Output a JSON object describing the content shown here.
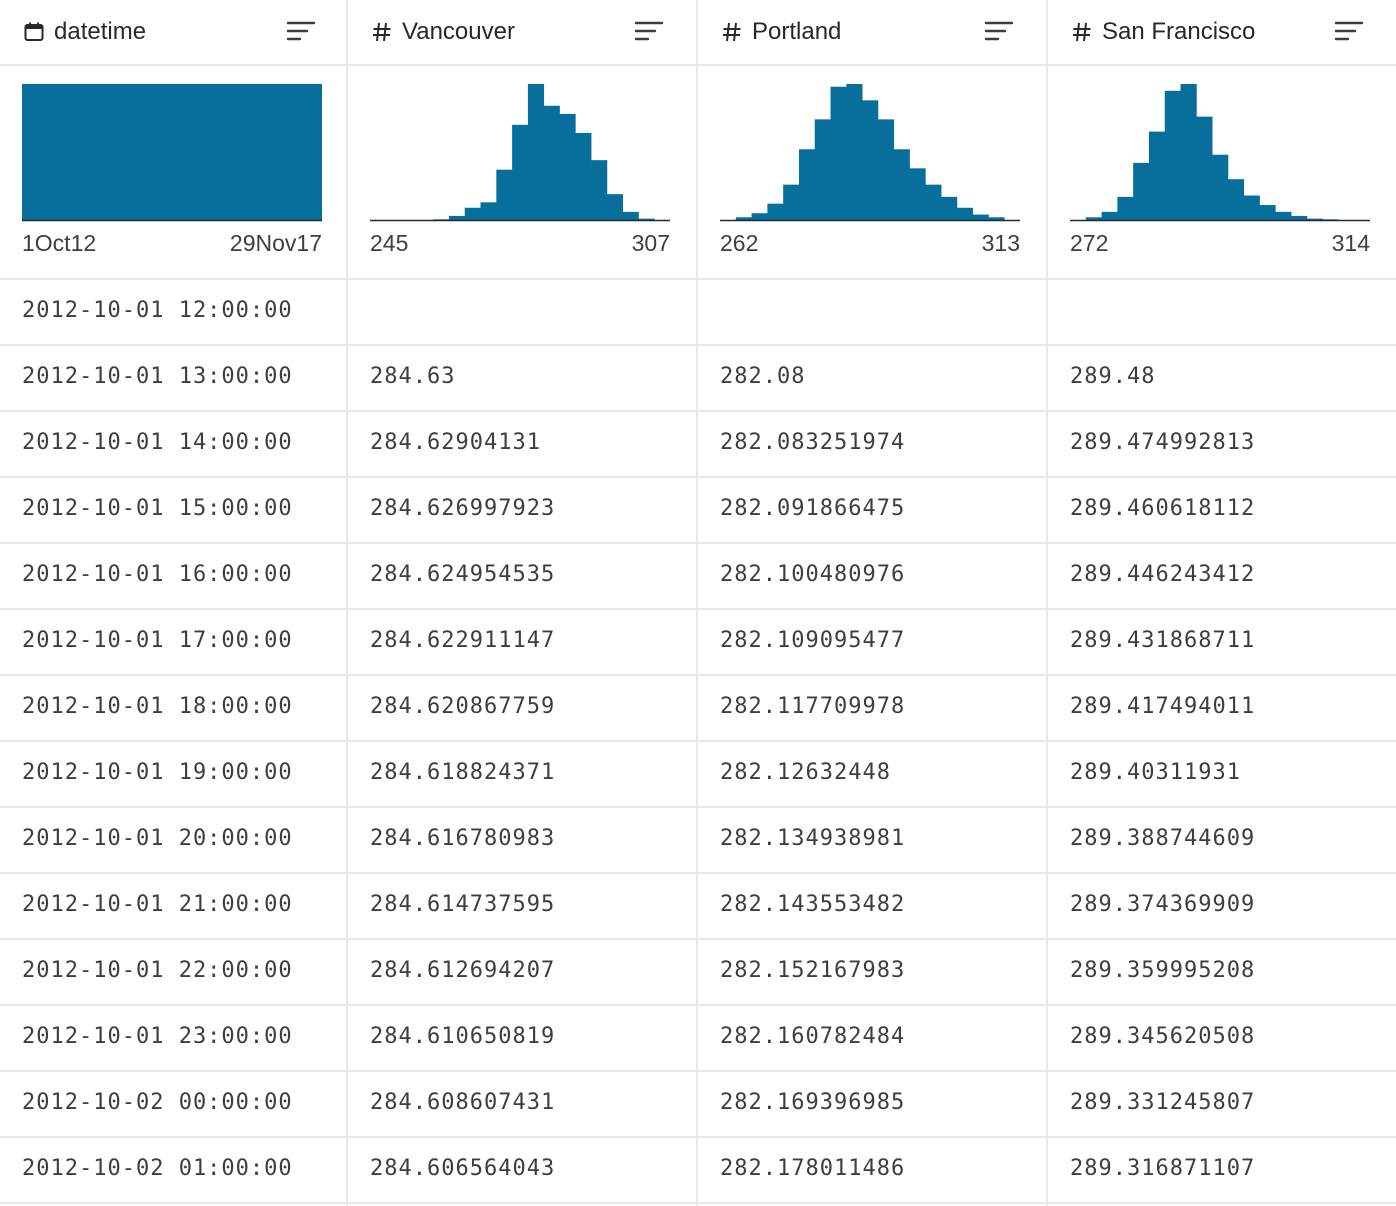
{
  "columns": [
    {
      "key": "datetime",
      "type_icon": "calendar-icon",
      "title": "datetime",
      "range_min": "1Oct12",
      "range_max": "29Nov17"
    },
    {
      "key": "vancouver",
      "type_icon": "hash-icon",
      "title": "Vancouver",
      "range_min": "245",
      "range_max": "307"
    },
    {
      "key": "portland",
      "type_icon": "hash-icon",
      "title": "Portland",
      "range_min": "262",
      "range_max": "313"
    },
    {
      "key": "san_francisco",
      "type_icon": "hash-icon",
      "title": "San Francisco",
      "range_min": "272",
      "range_max": "314"
    }
  ],
  "colors": {
    "accent": "#086f9c",
    "grid": "#e6e8ea",
    "text": "#3a3f44",
    "header_text": "#24292e"
  },
  "chart_data": [
    {
      "type": "bar",
      "column": "datetime",
      "x_range": [
        "1Oct12",
        "29Nov17"
      ],
      "values": [
        1
      ],
      "note": "uniform distribution"
    },
    {
      "type": "bar",
      "column": "Vancouver",
      "x_range": [
        245,
        307
      ],
      "values": [
        0,
        0,
        0,
        0,
        0.5,
        3,
        9,
        13,
        37,
        70,
        100,
        84,
        78,
        64,
        44,
        19,
        6,
        1,
        0
      ]
    },
    {
      "type": "bar",
      "column": "Portland",
      "x_range": [
        262,
        313
      ],
      "values": [
        0,
        2,
        5,
        12,
        26,
        52,
        74,
        98,
        100,
        88,
        74,
        52,
        38,
        26,
        17,
        9,
        4,
        2,
        0
      ]
    },
    {
      "type": "bar",
      "column": "San Francisco",
      "x_range": [
        272,
        314
      ],
      "values": [
        0,
        2,
        6,
        17,
        42,
        65,
        95,
        100,
        76,
        48,
        30,
        18,
        11,
        6,
        3,
        1,
        0.5,
        0,
        0
      ]
    }
  ],
  "rows": [
    [
      "2012-10-01 12:00:00",
      "",
      "",
      ""
    ],
    [
      "2012-10-01 13:00:00",
      "284.63",
      "282.08",
      "289.48"
    ],
    [
      "2012-10-01 14:00:00",
      "284.62904131",
      "282.083251974",
      "289.474992813"
    ],
    [
      "2012-10-01 15:00:00",
      "284.626997923",
      "282.091866475",
      "289.460618112"
    ],
    [
      "2012-10-01 16:00:00",
      "284.624954535",
      "282.100480976",
      "289.446243412"
    ],
    [
      "2012-10-01 17:00:00",
      "284.622911147",
      "282.109095477",
      "289.431868711"
    ],
    [
      "2012-10-01 18:00:00",
      "284.620867759",
      "282.117709978",
      "289.417494011"
    ],
    [
      "2012-10-01 19:00:00",
      "284.618824371",
      "282.12632448",
      "289.40311931"
    ],
    [
      "2012-10-01 20:00:00",
      "284.616780983",
      "282.134938981",
      "289.388744609"
    ],
    [
      "2012-10-01 21:00:00",
      "284.614737595",
      "282.143553482",
      "289.374369909"
    ],
    [
      "2012-10-01 22:00:00",
      "284.612694207",
      "282.152167983",
      "289.359995208"
    ],
    [
      "2012-10-01 23:00:00",
      "284.610650819",
      "282.160782484",
      "289.345620508"
    ],
    [
      "2012-10-02 00:00:00",
      "284.608607431",
      "282.169396985",
      "289.331245807"
    ],
    [
      "2012-10-02 01:00:00",
      "284.606564043",
      "282.178011486",
      "289.316871107"
    ]
  ]
}
